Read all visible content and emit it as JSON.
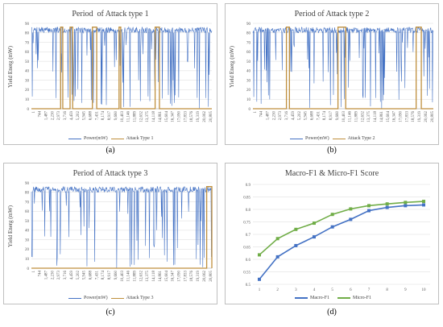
{
  "colors": {
    "power": "#4472c4",
    "attack": "#bf8f3d",
    "macro": "#4472c4",
    "micro": "#70ad47",
    "grid": "#d9d9d9",
    "border": "#bfbfbf"
  },
  "panels": [
    {
      "caption": "(a)",
      "title": "Period  of Attack type 1",
      "ylabel": "Yield Energ (mW)",
      "legend": {
        "power": "Power(mW)",
        "attack": "Attack Type 1"
      }
    },
    {
      "caption": "(b)",
      "title": "Period of Attack type 2",
      "ylabel": "Yield Energ (mW)",
      "legend": {
        "power": "Power(mW)",
        "attack": "Attack Type 2"
      }
    },
    {
      "caption": "(c)",
      "title": "Period of Attack type 3",
      "ylabel": "Yield Energ (mW)",
      "legend": {
        "power": "Power(mW)",
        "attack": "Attack Type 3"
      }
    },
    {
      "caption": "(d)",
      "title": "Macro-F1 & Micro-F1 Score",
      "legend": {
        "macro": "Macro-F1",
        "micro": "Micro-F1"
      }
    }
  ],
  "chart_data": [
    {
      "type": "line",
      "title": "Period  of Attack type 1",
      "ylabel": "Yield Energ (mW)",
      "ylim": [
        0,
        90
      ],
      "yticks": [
        0,
        10,
        20,
        30,
        40,
        50,
        60,
        70,
        80,
        90
      ],
      "xticks": [
        "1",
        "744",
        "1,487",
        "2,230",
        "2,973",
        "3,716",
        "4,459",
        "5,202",
        "5,945",
        "6,688",
        "7,431",
        "8,174",
        "8,917",
        "9,660",
        "10,403",
        "11,146",
        "11,889",
        "12,632",
        "13,375",
        "14,118",
        "14,861",
        "15,604",
        "16,347",
        "17,090",
        "17,833",
        "18,576",
        "19,319",
        "20,062",
        "20,805"
      ],
      "xmax": 21000,
      "series": [
        {
          "name": "Power(mW)"
        },
        {
          "name": "Attack Type 1",
          "periods": [
            [
              3400,
              3650
            ],
            [
              4500,
              4800
            ],
            [
              7100,
              7600
            ],
            [
              10200,
              10400
            ],
            [
              14400,
              14900
            ]
          ]
        }
      ]
    },
    {
      "type": "line",
      "title": "Period of Attack type 2",
      "ylabel": "Yield Energ (mW)",
      "ylim": [
        0,
        90
      ],
      "yticks": [
        0,
        10,
        20,
        30,
        40,
        50,
        60,
        70,
        80,
        90
      ],
      "xticks": [
        "1",
        "744",
        "1,487",
        "2,230",
        "2,973",
        "3,716",
        "4,459",
        "5,202",
        "5,945",
        "6,688",
        "7,431",
        "8,174",
        "8,917",
        "9,660",
        "10,403",
        "11,146",
        "11,889",
        "12,632",
        "13,375",
        "14,118",
        "14,861",
        "15,604",
        "16,347",
        "17,090",
        "17,833",
        "18,576",
        "19,319",
        "20,062",
        "20,805"
      ],
      "xmax": 21000,
      "series": [
        {
          "name": "Power(mW)"
        },
        {
          "name": "Attack Type 2",
          "periods": [
            [
              3900,
              4250
            ],
            [
              9900,
              10800
            ],
            [
              19000,
              19600
            ]
          ]
        }
      ]
    },
    {
      "type": "line",
      "title": "Period of Attack type 3",
      "ylabel": "Yield Energ (mW)",
      "ylim": [
        0,
        90
      ],
      "yticks": [
        0,
        10,
        20,
        30,
        40,
        50,
        60,
        70,
        80,
        90
      ],
      "xticks": [
        "1",
        "744",
        "1,487",
        "2,230",
        "2,973",
        "3,716",
        "4,459",
        "5,202",
        "5,945",
        "6,688",
        "7,431",
        "8,174",
        "8,917",
        "9,660",
        "10,403",
        "11,146",
        "11,889",
        "12,632",
        "13,375",
        "14,118",
        "14,861",
        "15,604",
        "16,347",
        "17,090",
        "17,833",
        "18,576",
        "19,319",
        "20,062",
        "20,805"
      ],
      "xmax": 21000,
      "series": [
        {
          "name": "Power(mW)"
        },
        {
          "name": "Attack Type 3",
          "periods": [
            [
              20400,
              21000
            ]
          ]
        }
      ]
    },
    {
      "type": "line",
      "title": "Macro-F1 & Micro-F1 Score",
      "x": [
        1,
        2,
        3,
        4,
        5,
        6,
        7,
        8,
        9,
        10
      ],
      "ylim": [
        0.5,
        0.9
      ],
      "yticks": [
        0.5,
        0.55,
        0.6,
        0.65,
        0.7,
        0.75,
        0.8,
        0.85,
        0.9
      ],
      "series": [
        {
          "name": "Macro-F1",
          "values": [
            0.52,
            0.61,
            0.655,
            0.69,
            0.73,
            0.76,
            0.795,
            0.808,
            0.815,
            0.818
          ]
        },
        {
          "name": "Micro-F1",
          "values": [
            0.618,
            0.683,
            0.72,
            0.745,
            0.78,
            0.802,
            0.815,
            0.822,
            0.828,
            0.832
          ]
        }
      ]
    }
  ]
}
